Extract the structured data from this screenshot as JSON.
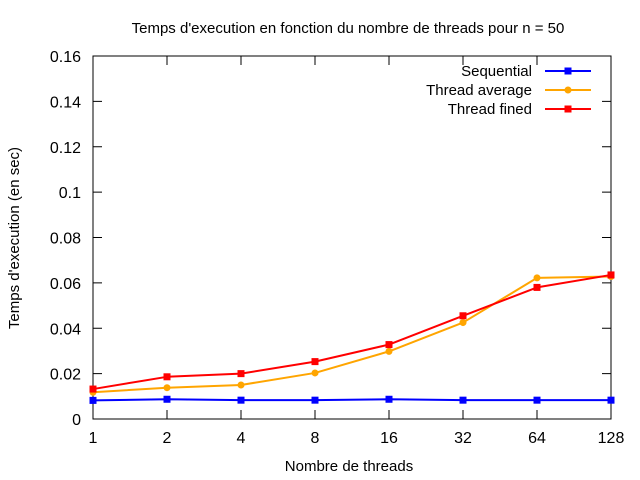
{
  "chart_data": {
    "type": "line",
    "title": "Temps d'execution en fonction du nombre de threads pour n = 50",
    "xlabel": "Nombre de threads",
    "ylabel": "Temps d'execution (en sec)",
    "x_scale": "log2",
    "x": [
      1,
      2,
      4,
      8,
      16,
      32,
      64,
      128
    ],
    "x_tick_labels": [
      "1",
      "2",
      "4",
      "8",
      "16",
      "32",
      "64",
      "128"
    ],
    "ylim": [
      0,
      0.16
    ],
    "y_ticks": [
      0,
      0.02,
      0.04,
      0.06,
      0.08,
      0.1,
      0.12,
      0.14,
      0.16
    ],
    "y_tick_labels": [
      "0",
      "0.02",
      "0.04",
      "0.06",
      "0.08",
      "0.1",
      "0.12",
      "0.14",
      "0.16"
    ],
    "grid": false,
    "legend_position": "top-right",
    "series": [
      {
        "name": "Sequential",
        "color": "#0000ff",
        "marker": "square",
        "values": [
          0.0082,
          0.0087,
          0.0083,
          0.0083,
          0.0087,
          0.0083,
          0.0083,
          0.0083
        ]
      },
      {
        "name": "Thread average",
        "color": "#ffa500",
        "marker": "circle",
        "values": [
          0.0118,
          0.0138,
          0.015,
          0.0203,
          0.0298,
          0.0425,
          0.0622,
          0.0628
        ]
      },
      {
        "name": "Thread fined",
        "color": "#ff0000",
        "marker": "square",
        "values": [
          0.0132,
          0.0186,
          0.02,
          0.0253,
          0.0328,
          0.0455,
          0.058,
          0.0635
        ]
      }
    ]
  }
}
